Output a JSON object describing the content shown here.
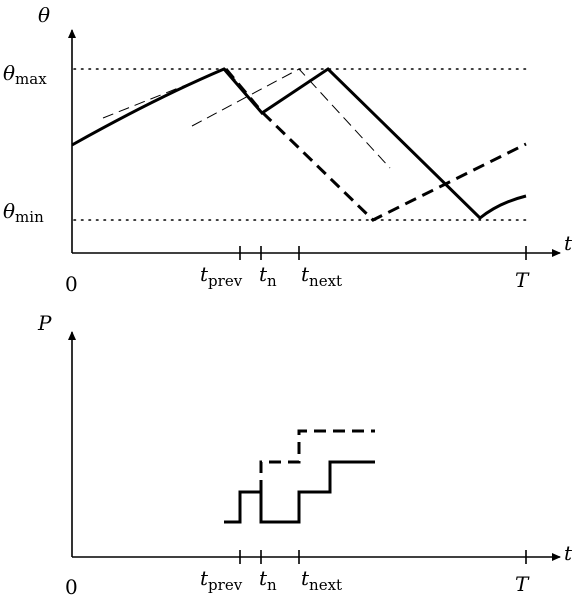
{
  "top_panel": {
    "y_axis_label": "θ",
    "x_axis_label": "t",
    "theta_max": {
      "symbol": "θ",
      "subscript": "max"
    },
    "theta_min": {
      "symbol": "θ",
      "subscript": "min"
    }
  },
  "bottom_panel": {
    "y_axis_label": "P",
    "x_axis_label": "t"
  },
  "x_ticks": {
    "origin": "0",
    "t_prev": {
      "symbol": "t",
      "subscript": "prev"
    },
    "t_n": {
      "symbol": "t",
      "subscript": "n"
    },
    "t_next": {
      "symbol": "t",
      "subscript": "next"
    },
    "end": "T"
  }
}
